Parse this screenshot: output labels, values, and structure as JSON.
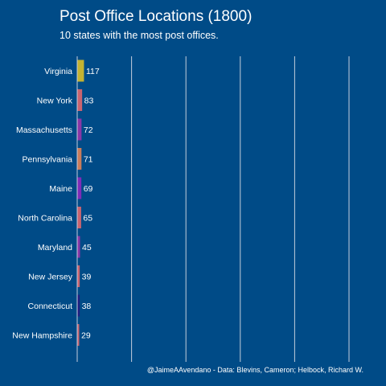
{
  "colors": {
    "background": "#004b87",
    "grid": "#d9dde6",
    "text": "#ffffff"
  },
  "chart_data": {
    "type": "bar",
    "orientation": "horizontal",
    "title": "Post Office Locations (1800)",
    "subtitle": "10 states with the most post offices.",
    "caption": "@JaimeAAvendano - Data: Blevins, Cameron; Helbock, Richard W.",
    "xlabel": "",
    "ylabel": "",
    "xlim": [
      0,
      1000
    ],
    "grid": true,
    "legend": "none",
    "categories": [
      "Virginia",
      "New York",
      "Massachusetts",
      "Pennsylvania",
      "Maine",
      "North Carolina",
      "Maryland",
      "New Jersey",
      "Connecticut",
      "New Hampshire"
    ],
    "values": [
      117,
      83,
      72,
      71,
      69,
      65,
      45,
      39,
      38,
      29
    ],
    "bar_colors": [
      "#c4b332",
      "#c96470",
      "#8a36a6",
      "#c97c5b",
      "#7f2bb8",
      "#c96470",
      "#8a36a6",
      "#c96470",
      "#1f1d80",
      "#c96470"
    ]
  }
}
